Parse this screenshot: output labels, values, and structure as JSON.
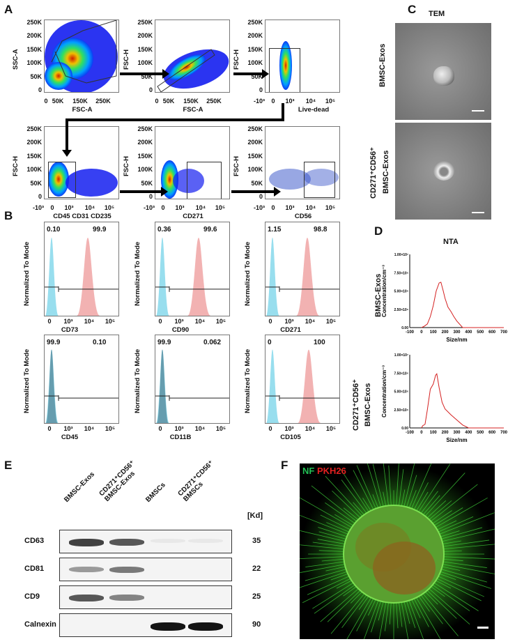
{
  "panels": {
    "a": "A",
    "b": "B",
    "c": "C",
    "d": "D",
    "e": "E",
    "f": "F"
  },
  "flow": {
    "yticks": [
      "250K",
      "200K",
      "150K",
      "100K",
      "50K",
      "0"
    ],
    "lin_xticks": [
      "0",
      "50K",
      "150K",
      "250K"
    ],
    "log_xticks": [
      "-10³",
      "0",
      "10³",
      "10⁴",
      "10⁵"
    ],
    "plots": [
      {
        "ylabel": "SSC-A",
        "xlabel": "FSC-A"
      },
      {
        "ylabel": "FSC-H",
        "xlabel": "FSC-A"
      },
      {
        "ylabel": "FSC-H",
        "xlabel": "Live-dead"
      },
      {
        "ylabel": "FSC-H",
        "xlabel": "CD45 CD31 CD235"
      },
      {
        "ylabel": "FSC-H",
        "xlabel": "CD271"
      },
      {
        "ylabel": "FSC-H",
        "xlabel": "CD56"
      }
    ]
  },
  "histograms": {
    "ylabel": "Normalized To Mode",
    "xticks": [
      "0",
      "10³",
      "10⁴",
      "10⁵"
    ],
    "colors": {
      "control": "#7fd6ea",
      "stained": "#f0a0a0"
    },
    "plots": [
      {
        "marker": "CD73",
        "left": "0.10",
        "right": "99.9",
        "stained_peak": "high"
      },
      {
        "marker": "CD90",
        "left": "0.36",
        "right": "99.6",
        "stained_peak": "high"
      },
      {
        "marker": "CD271",
        "left": "1.15",
        "right": "98.8",
        "stained_peak": "high"
      },
      {
        "marker": "CD45",
        "left": "99.9",
        "right": "0.10",
        "stained_peak": "none"
      },
      {
        "marker": "CD11B",
        "left": "99.9",
        "right": "0.062",
        "stained_peak": "none"
      },
      {
        "marker": "CD105",
        "left": "0",
        "right": "100",
        "stained_peak": "high"
      }
    ]
  },
  "tem": {
    "title": "TEM",
    "rows": [
      "BMSC-Exos",
      "CD271⁺CD56⁺",
      "BMSC-Exos"
    ]
  },
  "nta": {
    "title": "NTA",
    "row_labels": [
      "BMSC-Exos",
      "CD271⁺CD56⁺",
      "BMSC-Exos"
    ]
  },
  "chart_data": [
    {
      "type": "line",
      "ylabel": "Concentration/cm⁻³",
      "xlabel": "Size/nm",
      "xlim": [
        -100,
        700
      ],
      "ylim": [
        0,
        10000000
      ],
      "xticks": [
        "-100",
        "0",
        "100",
        "200",
        "300",
        "400",
        "500",
        "600",
        "700"
      ],
      "yticks": [
        "1.00×10⁷",
        "7.50×10⁶",
        "5.00×10⁶",
        "2.50×10⁶",
        "0.00"
      ],
      "color": "#d42020",
      "x": [
        0,
        25,
        50,
        75,
        100,
        125,
        150,
        165,
        185,
        200,
        225,
        250,
        275,
        300,
        350,
        700
      ],
      "y": [
        0,
        200000,
        500000,
        1500000,
        3000000,
        5000000,
        6100000,
        6200000,
        5000000,
        4000000,
        2800000,
        2200000,
        1500000,
        900000,
        0,
        0
      ]
    },
    {
      "type": "line",
      "ylabel": "Concentration/cm⁻³",
      "xlabel": "Size/nm",
      "xlim": [
        -100,
        700
      ],
      "ylim": [
        0,
        10000000
      ],
      "xticks": [
        "-100",
        "0",
        "100",
        "200",
        "300",
        "400",
        "500",
        "600",
        "700"
      ],
      "yticks": [
        "1.00×10⁷",
        "7.50×10⁶",
        "5.00×10⁶",
        "2.50×10⁶",
        "0.00"
      ],
      "color": "#d42020",
      "x": [
        0,
        10,
        30,
        50,
        75,
        100,
        120,
        130,
        150,
        175,
        200,
        250,
        300,
        350,
        400,
        700
      ],
      "y": [
        0,
        300000,
        500000,
        2500000,
        5300000,
        6000000,
        7200000,
        7400000,
        5500000,
        3500000,
        2600000,
        1800000,
        1100000,
        400000,
        0,
        0
      ]
    }
  ],
  "western": {
    "lanes": [
      "BMSC-Exos",
      "CD271⁺CD56⁺\nBMSC-Exos",
      "BMSCs",
      "CD271⁺CD56⁺\nBMSCs"
    ],
    "kd_header": "[Kd]",
    "rows": [
      {
        "name": "CD63",
        "kd": "35",
        "intensity": [
          0.8,
          0.7,
          0.05,
          0.05
        ]
      },
      {
        "name": "CD81",
        "kd": "22",
        "intensity": [
          0.4,
          0.55,
          0,
          0
        ]
      },
      {
        "name": "CD9",
        "kd": "25",
        "intensity": [
          0.7,
          0.5,
          0,
          0
        ]
      },
      {
        "name": "Calnexin",
        "kd": "90",
        "intensity": [
          0,
          0,
          1,
          1
        ]
      }
    ]
  },
  "confocal": {
    "label_nf": "NF",
    "label_pkh": "PKH26",
    "nf_color": "#22c055",
    "pkh_color": "#e02020"
  }
}
